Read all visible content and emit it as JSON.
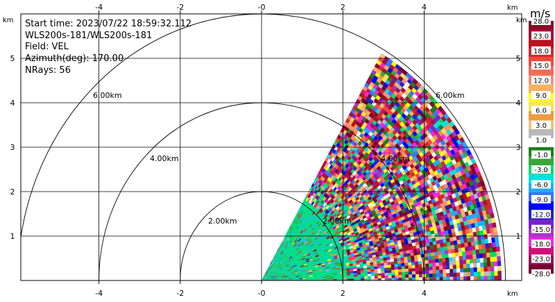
{
  "info": {
    "start_time": "Start time: 2023/07/22 18:59:32.112",
    "instrument": "WLS200s-181/WLS200s-181",
    "field": "Field: VEL",
    "azimuth": "Azimuth(deg): 170.00",
    "nrays": "NRays: 56"
  },
  "chart_data": {
    "type": "heatmap",
    "subtype": "radar-rhi-scan",
    "x_unit": "km",
    "y_unit": "km",
    "xlim": [
      -6,
      6
    ],
    "ylim": [
      0,
      6
    ],
    "x_ticks": [
      "-4",
      "-2",
      "-0",
      "2",
      "4"
    ],
    "y_ticks": [
      "1",
      "2",
      "3",
      "4",
      "5"
    ],
    "grid": true,
    "range_rings_km": [
      2,
      4,
      6
    ],
    "range_ring_labels": [
      "2.00km",
      "4.00km",
      "6.00km"
    ],
    "elevation_span_deg": [
      0,
      60
    ],
    "max_range_km": 5.9,
    "colorbar": {
      "unit": "m/s",
      "labels": [
        "28.0",
        "23.0",
        "18.0",
        "15.0",
        "12.0",
        "9.0",
        "6.0",
        "3.0",
        "1.0",
        "-1.0",
        "-3.0",
        "-6.0",
        "-9.0",
        "-12.0",
        "-15.0",
        "-18.0",
        "-23.0",
        "-28.0"
      ],
      "colors": [
        "#8b0a2a",
        "#a0143a",
        "#b81220",
        "#d22a2a",
        "#ee4a3a",
        "#f36a55",
        "#f5907a",
        "#f9b15f",
        "#ffff00",
        "#f8e45a",
        "#f29a3a",
        "#f1c07a",
        "#b9b9b9",
        "#ffffff",
        "#1d7f1d",
        "#3aa53a",
        "#00dd66",
        "#00e0e0",
        "#22aaff",
        "#3377ff",
        "#0000ff",
        "#2222cc",
        "#7722cc",
        "#aa33cc",
        "#ff22dd",
        "#cc1177",
        "#991155",
        "#770033"
      ]
    }
  }
}
